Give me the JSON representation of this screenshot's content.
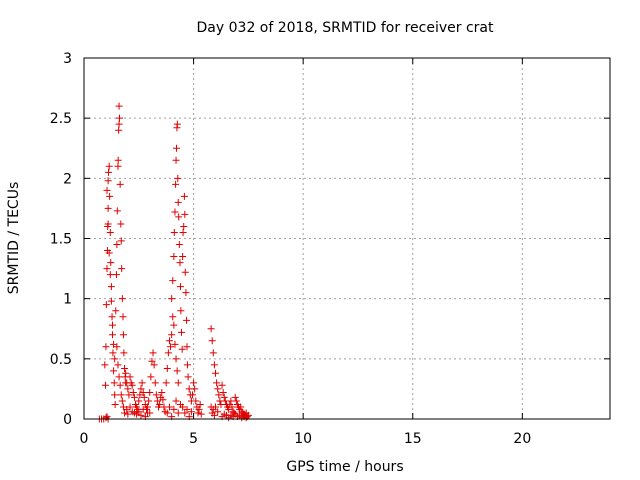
{
  "chart_data": {
    "type": "scatter",
    "title": "Day 032 of 2018, SRMTID for receiver crat",
    "xlabel": "GPS time / hours",
    "ylabel": "SRMTID / TECUs",
    "xlim": [
      0,
      24
    ],
    "ylim": [
      0,
      3
    ],
    "xticks": [
      0,
      5,
      10,
      15,
      20
    ],
    "xtick_labels": [
      "0",
      "5",
      "10",
      "15",
      "20"
    ],
    "yticks": [
      0,
      0.5,
      1,
      1.5,
      2,
      2.5,
      3
    ],
    "ytick_labels": [
      "0",
      "0.5",
      "1",
      "1.5",
      "2",
      "2.5",
      "3"
    ],
    "grid": true,
    "marker": "+",
    "color": "#e00000",
    "series": [
      {
        "name": "SRMTID",
        "points": [
          [
            0.7,
            0.0
          ],
          [
            0.8,
            0.0
          ],
          [
            0.9,
            0.0
          ],
          [
            1.0,
            0.01
          ],
          [
            1.05,
            0.02
          ],
          [
            1.1,
            0.0
          ],
          [
            0.95,
            0.45
          ],
          [
            0.98,
            0.28
          ],
          [
            1.0,
            0.6
          ],
          [
            1.02,
            0.95
          ],
          [
            1.05,
            1.25
          ],
          [
            1.07,
            1.4
          ],
          [
            1.08,
            1.6
          ],
          [
            1.1,
            1.75
          ],
          [
            1.1,
            1.98
          ],
          [
            1.12,
            2.05
          ],
          [
            1.15,
            2.1
          ],
          [
            1.17,
            1.85
          ],
          [
            1.2,
            1.55
          ],
          [
            1.22,
            1.3
          ],
          [
            1.25,
            1.1
          ],
          [
            1.28,
            0.85
          ],
          [
            1.3,
            0.7
          ],
          [
            1.32,
            0.55
          ],
          [
            1.35,
            0.4
          ],
          [
            1.38,
            0.3
          ],
          [
            1.4,
            0.2
          ],
          [
            1.42,
            0.12
          ],
          [
            1.05,
            1.9
          ],
          [
            1.1,
            1.62
          ],
          [
            1.15,
            1.38
          ],
          [
            1.2,
            1.2
          ],
          [
            1.25,
            0.98
          ],
          [
            1.3,
            0.78
          ],
          [
            1.35,
            0.62
          ],
          [
            1.4,
            0.5
          ],
          [
            1.45,
            0.9
          ],
          [
            1.48,
            1.2
          ],
          [
            1.5,
            1.45
          ],
          [
            1.52,
            1.73
          ],
          [
            1.55,
            2.1
          ],
          [
            1.56,
            2.15
          ],
          [
            1.58,
            2.4
          ],
          [
            1.6,
            2.45
          ],
          [
            1.6,
            2.6
          ],
          [
            1.62,
            2.5
          ],
          [
            1.65,
            1.95
          ],
          [
            1.68,
            1.62
          ],
          [
            1.7,
            1.48
          ],
          [
            1.72,
            1.25
          ],
          [
            1.75,
            1.0
          ],
          [
            1.78,
            0.85
          ],
          [
            1.8,
            0.7
          ],
          [
            1.82,
            0.55
          ],
          [
            1.85,
            0.42
          ],
          [
            1.88,
            0.35
          ],
          [
            1.9,
            0.3
          ],
          [
            1.5,
            0.6
          ],
          [
            1.55,
            0.45
          ],
          [
            1.6,
            0.35
          ],
          [
            1.65,
            0.28
          ],
          [
            1.7,
            0.2
          ],
          [
            1.75,
            0.15
          ],
          [
            1.8,
            0.1
          ],
          [
            1.85,
            0.05
          ],
          [
            1.9,
            0.38
          ],
          [
            1.95,
            0.3
          ],
          [
            2.0,
            0.25
          ],
          [
            2.05,
            0.2
          ],
          [
            2.1,
            0.35
          ],
          [
            2.15,
            0.3
          ],
          [
            2.2,
            0.28
          ],
          [
            2.25,
            0.22
          ],
          [
            2.3,
            0.18
          ],
          [
            2.35,
            0.12
          ],
          [
            2.4,
            0.1
          ],
          [
            2.45,
            0.08
          ],
          [
            2.5,
            0.15
          ],
          [
            2.55,
            0.2
          ],
          [
            2.6,
            0.25
          ],
          [
            2.65,
            0.3
          ],
          [
            2.7,
            0.22
          ],
          [
            2.75,
            0.18
          ],
          [
            2.8,
            0.12
          ],
          [
            2.85,
            0.08
          ],
          [
            2.9,
            0.05
          ],
          [
            1.95,
            0.08
          ],
          [
            2.0,
            0.04
          ],
          [
            2.1,
            0.1
          ],
          [
            2.2,
            0.06
          ],
          [
            2.3,
            0.05
          ],
          [
            2.4,
            0.04
          ],
          [
            2.5,
            0.06
          ],
          [
            2.6,
            0.03
          ],
          [
            2.7,
            0.08
          ],
          [
            2.8,
            0.02
          ],
          [
            2.9,
            0.1
          ],
          [
            3.0,
            0.05
          ],
          [
            2.95,
            0.15
          ],
          [
            3.0,
            0.22
          ],
          [
            3.05,
            0.35
          ],
          [
            3.1,
            0.48
          ],
          [
            3.15,
            0.55
          ],
          [
            3.2,
            0.45
          ],
          [
            3.25,
            0.3
          ],
          [
            3.3,
            0.2
          ],
          [
            3.35,
            0.15
          ],
          [
            3.4,
            0.1
          ],
          [
            3.45,
            0.12
          ],
          [
            3.5,
            0.18
          ],
          [
            3.55,
            0.22
          ],
          [
            3.6,
            0.16
          ],
          [
            3.65,
            0.1
          ],
          [
            3.7,
            0.06
          ],
          [
            3.75,
            0.3
          ],
          [
            3.8,
            0.42
          ],
          [
            3.85,
            0.55
          ],
          [
            3.9,
            0.65
          ],
          [
            3.95,
            0.6
          ],
          [
            4.0,
            0.7
          ],
          [
            4.05,
            0.85
          ],
          [
            4.1,
            0.78
          ],
          [
            4.15,
            0.62
          ],
          [
            4.2,
            0.5
          ],
          [
            4.25,
            0.4
          ],
          [
            4.3,
            0.3
          ],
          [
            4.0,
            1.0
          ],
          [
            4.05,
            1.15
          ],
          [
            4.1,
            1.35
          ],
          [
            4.12,
            1.55
          ],
          [
            4.15,
            1.72
          ],
          [
            4.18,
            1.95
          ],
          [
            4.2,
            2.15
          ],
          [
            4.22,
            2.25
          ],
          [
            4.24,
            2.42
          ],
          [
            4.26,
            2.45
          ],
          [
            4.28,
            2.0
          ],
          [
            4.3,
            1.8
          ],
          [
            4.32,
            1.68
          ],
          [
            4.35,
            1.45
          ],
          [
            4.38,
            1.3
          ],
          [
            4.4,
            1.1
          ],
          [
            4.42,
            0.9
          ],
          [
            4.45,
            0.72
          ],
          [
            4.48,
            0.58
          ],
          [
            4.5,
            1.35
          ],
          [
            4.52,
            1.55
          ],
          [
            4.55,
            1.6
          ],
          [
            4.58,
            1.85
          ],
          [
            4.6,
            1.7
          ],
          [
            4.62,
            1.22
          ],
          [
            4.65,
            1.05
          ],
          [
            4.68,
            0.82
          ],
          [
            4.7,
            0.6
          ],
          [
            4.72,
            0.45
          ],
          [
            4.75,
            0.35
          ],
          [
            4.8,
            0.25
          ],
          [
            4.85,
            0.2
          ],
          [
            4.9,
            0.15
          ],
          [
            3.8,
            0.05
          ],
          [
            3.9,
            0.1
          ],
          [
            4.0,
            0.02
          ],
          [
            4.1,
            0.08
          ],
          [
            4.2,
            0.15
          ],
          [
            4.3,
            0.05
          ],
          [
            4.4,
            0.12
          ],
          [
            4.5,
            0.1
          ],
          [
            4.6,
            0.05
          ],
          [
            4.7,
            0.08
          ],
          [
            4.8,
            0.02
          ],
          [
            4.9,
            0.06
          ],
          [
            4.95,
            0.2
          ],
          [
            5.0,
            0.3
          ],
          [
            5.05,
            0.25
          ],
          [
            5.1,
            0.15
          ],
          [
            5.15,
            0.1
          ],
          [
            5.2,
            0.05
          ],
          [
            5.25,
            0.08
          ],
          [
            5.3,
            0.12
          ],
          [
            5.35,
            0.04
          ],
          [
            5.8,
            0.75
          ],
          [
            5.85,
            0.65
          ],
          [
            5.9,
            0.55
          ],
          [
            5.95,
            0.45
          ],
          [
            6.0,
            0.38
          ],
          [
            6.05,
            0.3
          ],
          [
            6.1,
            0.25
          ],
          [
            6.15,
            0.2
          ],
          [
            6.2,
            0.15
          ],
          [
            6.25,
            0.12
          ],
          [
            5.8,
            0.1
          ],
          [
            5.85,
            0.05
          ],
          [
            5.9,
            0.08
          ],
          [
            5.95,
            0.03
          ],
          [
            6.0,
            0.1
          ],
          [
            6.1,
            0.06
          ],
          [
            6.3,
            0.28
          ],
          [
            6.35,
            0.22
          ],
          [
            6.4,
            0.18
          ],
          [
            6.45,
            0.15
          ],
          [
            6.5,
            0.12
          ],
          [
            6.55,
            0.1
          ],
          [
            6.6,
            0.08
          ],
          [
            6.65,
            0.12
          ],
          [
            6.7,
            0.15
          ],
          [
            6.75,
            0.1
          ],
          [
            6.8,
            0.06
          ],
          [
            6.85,
            0.05
          ],
          [
            6.9,
            0.18
          ],
          [
            6.95,
            0.15
          ],
          [
            7.0,
            0.12
          ],
          [
            7.05,
            0.1
          ],
          [
            7.1,
            0.08
          ],
          [
            7.15,
            0.1
          ],
          [
            7.2,
            0.06
          ],
          [
            7.25,
            0.05
          ],
          [
            7.3,
            0.04
          ],
          [
            7.35,
            0.03
          ],
          [
            7.4,
            0.05
          ],
          [
            7.45,
            0.02
          ],
          [
            7.5,
            0.03
          ],
          [
            6.3,
            0.02
          ],
          [
            6.4,
            0.04
          ],
          [
            6.5,
            0.03
          ],
          [
            6.6,
            0.01
          ],
          [
            6.7,
            0.03
          ],
          [
            6.8,
            0.02
          ],
          [
            6.9,
            0.04
          ],
          [
            7.0,
            0.02
          ],
          [
            7.1,
            0.03
          ],
          [
            7.2,
            0.01
          ],
          [
            7.3,
            0.02
          ],
          [
            7.4,
            0.01
          ]
        ]
      }
    ]
  }
}
